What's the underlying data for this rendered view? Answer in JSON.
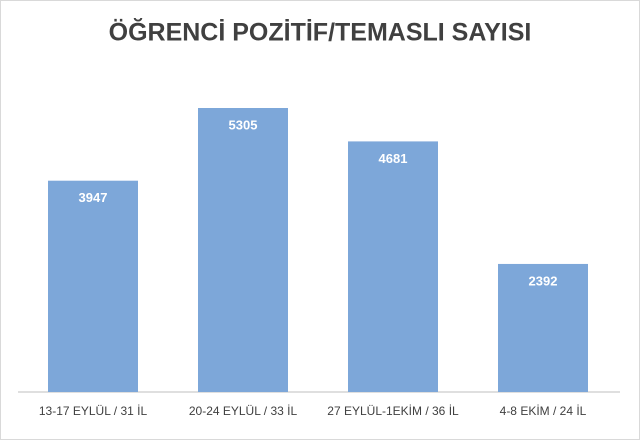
{
  "chart_data": {
    "type": "bar",
    "title": "ÖĞRENCİ POZİTİF/TEMASLI SAYISI",
    "categories": [
      "13-17 EYLÜL / 31 İL",
      "20-24 EYLÜL / 33 İL",
      "27 EYLÜL-1EKİM / 36 İL",
      "4-8 EKİM / 24 İL"
    ],
    "values": [
      3947,
      5305,
      4681,
      2392
    ],
    "color": "#7da7d9"
  }
}
